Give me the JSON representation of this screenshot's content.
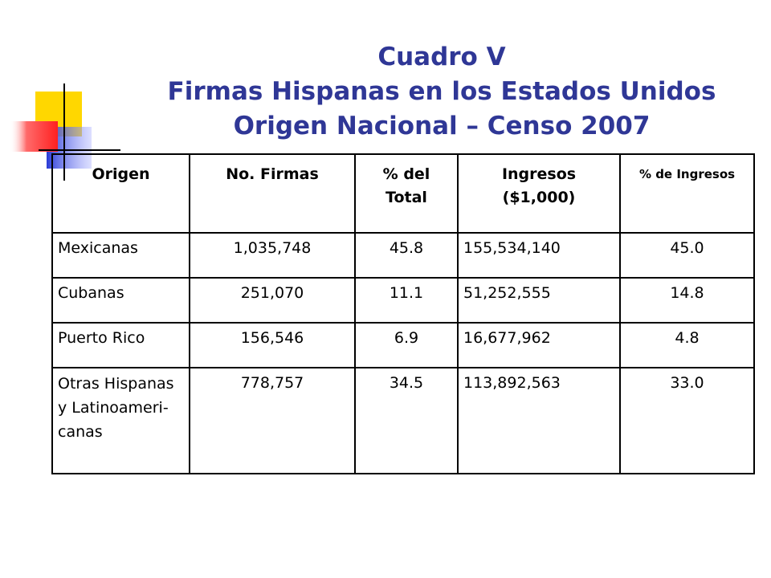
{
  "title": {
    "line1": "Cuadro V",
    "line2": "Firmas Hispanas en los Estados Unidos",
    "line3": "Origen Nacional – Censo 2007",
    "color": "#2f3796"
  },
  "decoration": {
    "colors": {
      "yellow": "#ffd700",
      "blue": "#2a3bd6",
      "red": "#ff2a2a"
    }
  },
  "table": {
    "headers": [
      "Origen",
      "No. Firmas",
      "% del Total",
      "Ingresos ($1,000)",
      "% de Ingresos"
    ],
    "rows": [
      [
        "Mexicanas",
        "1,035,748",
        "45.8",
        "155,534,140",
        "45.0"
      ],
      [
        "Cubanas",
        "251,070",
        "11.1",
        "51,252,555",
        "14.8"
      ],
      [
        "Puerto Rico",
        "156,546",
        "6.9",
        "16,677,962",
        "4.8"
      ],
      [
        "Otras Hispanas  y Latinoameri-canas",
        "778,757",
        "34.5",
        "113,892,563",
        "33.0"
      ]
    ]
  }
}
